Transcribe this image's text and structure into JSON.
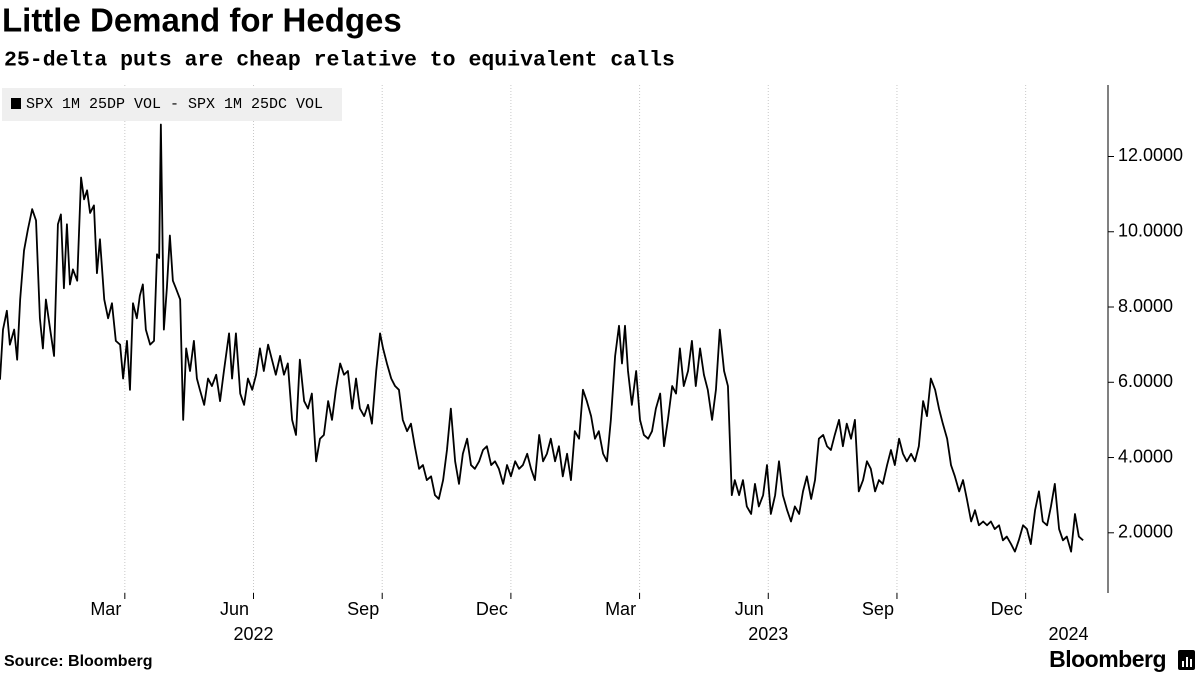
{
  "chart_data": {
    "type": "line",
    "title": "Little Demand for Hedges",
    "subtitle": "25-delta puts are cheap relative to equivalent calls",
    "source": "Source: Bloomberg",
    "logo": "Bloomberg",
    "legend": "top-left",
    "grid": "x",
    "xlim": [
      -0.91,
      24.92
    ],
    "ylim": [
      0.4,
      13.9
    ],
    "xticks": [
      {
        "value": 2,
        "label": "Mar"
      },
      {
        "value": 5,
        "label": "Jun"
      },
      {
        "value": 8,
        "label": "Sep"
      },
      {
        "value": 11,
        "label": "Dec"
      },
      {
        "value": 14,
        "label": "Mar"
      },
      {
        "value": 17,
        "label": "Jun"
      },
      {
        "value": 20,
        "label": "Sep"
      },
      {
        "value": 23,
        "label": "Dec"
      }
    ],
    "year_labels": [
      {
        "value": 5,
        "label": "2022"
      },
      {
        "value": 17,
        "label": "2023"
      },
      {
        "value": 24,
        "label": "2024"
      }
    ],
    "yticks": [
      {
        "value": 2,
        "label": "2.0000"
      },
      {
        "value": 4,
        "label": "4.0000"
      },
      {
        "value": 6,
        "label": "6.0000"
      },
      {
        "value": 8,
        "label": "8.0000"
      },
      {
        "value": 10,
        "label": "10.0000"
      },
      {
        "value": 12,
        "label": "12.0000"
      }
    ],
    "x": [
      -0.91,
      -0.84,
      -0.75,
      -0.68,
      -0.58,
      -0.51,
      -0.44,
      -0.35,
      -0.26,
      -0.16,
      -0.07,
      0.02,
      0.09,
      0.16,
      0.26,
      0.35,
      0.44,
      0.51,
      0.58,
      0.65,
      0.72,
      0.79,
      0.89,
      0.98,
      1.05,
      1.12,
      1.19,
      1.28,
      1.35,
      1.42,
      1.52,
      1.61,
      1.7,
      1.79,
      1.89,
      1.96,
      2.05,
      2.12,
      2.19,
      2.28,
      2.35,
      2.42,
      2.49,
      2.59,
      2.68,
      2.75,
      2.8,
      2.84,
      2.91,
      2.98,
      3.05,
      3.12,
      3.19,
      3.29,
      3.36,
      3.43,
      3.52,
      3.61,
      3.68,
      3.75,
      3.85,
      3.94,
      4.03,
      4.13,
      4.22,
      4.31,
      4.43,
      4.5,
      4.59,
      4.69,
      4.78,
      4.87,
      4.97,
      5.06,
      5.15,
      5.24,
      5.34,
      5.43,
      5.52,
      5.62,
      5.71,
      5.8,
      5.9,
      5.99,
      6.08,
      6.18,
      6.27,
      6.36,
      6.46,
      6.55,
      6.64,
      6.74,
      6.83,
      6.92,
      7.02,
      7.11,
      7.2,
      7.3,
      7.39,
      7.48,
      7.58,
      7.67,
      7.76,
      7.86,
      7.95,
      8.02,
      8.11,
      8.21,
      8.3,
      8.39,
      8.48,
      8.58,
      8.67,
      8.76,
      8.86,
      8.95,
      9.04,
      9.14,
      9.23,
      9.32,
      9.42,
      9.51,
      9.6,
      9.7,
      9.79,
      9.88,
      9.98,
      10.07,
      10.16,
      10.26,
      10.35,
      10.44,
      10.54,
      10.63,
      10.72,
      10.82,
      10.91,
      11.0,
      11.1,
      11.19,
      11.28,
      11.38,
      11.47,
      11.56,
      11.66,
      11.75,
      11.84,
      11.93,
      12.03,
      12.12,
      12.21,
      12.31,
      12.4,
      12.49,
      12.59,
      12.68,
      12.77,
      12.87,
      12.96,
      13.05,
      13.15,
      13.24,
      13.33,
      13.43,
      13.52,
      13.59,
      13.66,
      13.73,
      13.82,
      13.92,
      14.01,
      14.1,
      14.2,
      14.29,
      14.38,
      14.48,
      14.57,
      14.66,
      14.76,
      14.85,
      14.94,
      15.03,
      15.13,
      15.22,
      15.31,
      15.41,
      15.5,
      15.59,
      15.69,
      15.78,
      15.87,
      15.97,
      16.06,
      16.15,
      16.22,
      16.32,
      16.41,
      16.5,
      16.6,
      16.69,
      16.78,
      16.88,
      16.97,
      17.06,
      17.16,
      17.25,
      17.34,
      17.44,
      17.53,
      17.62,
      17.72,
      17.81,
      17.9,
      18.0,
      18.09,
      18.18,
      18.28,
      18.37,
      18.46,
      18.55,
      18.65,
      18.74,
      18.83,
      18.93,
      19.02,
      19.11,
      19.21,
      19.3,
      19.39,
      19.49,
      19.58,
      19.67,
      19.77,
      19.86,
      19.95,
      20.05,
      20.14,
      20.23,
      20.33,
      20.42,
      20.51,
      20.61,
      20.7,
      20.79,
      20.89,
      20.98,
      21.07,
      21.17,
      21.26,
      21.35,
      21.45,
      21.54,
      21.63,
      21.73,
      21.82,
      21.91,
      22.01,
      22.1,
      22.19,
      22.28,
      22.38,
      22.47,
      22.56,
      22.66,
      22.75,
      22.84,
      22.94,
      23.03,
      23.12,
      23.22,
      23.31,
      23.4,
      23.5,
      23.59,
      23.68,
      23.78,
      23.87,
      23.96,
      24.06,
      24.15,
      24.24,
      24.34
    ],
    "series": [
      {
        "name": "SPX 1M 25DP VOL - SPX 1M 25DC VOL",
        "color": "#000000",
        "values": [
          6.07,
          7.4,
          7.9,
          7.0,
          7.4,
          6.6,
          8.2,
          9.5,
          10.06,
          10.6,
          10.3,
          7.7,
          6.9,
          8.2,
          7.4,
          6.7,
          10.2,
          10.46,
          8.5,
          10.2,
          8.6,
          9.0,
          8.7,
          11.44,
          10.86,
          11.1,
          10.5,
          10.7,
          8.9,
          9.8,
          8.2,
          7.7,
          8.1,
          7.1,
          7.0,
          6.1,
          7.1,
          5.8,
          8.1,
          7.7,
          8.3,
          8.6,
          7.4,
          7.0,
          7.1,
          9.4,
          9.3,
          12.85,
          7.4,
          8.5,
          9.9,
          8.7,
          8.5,
          8.2,
          5.0,
          6.9,
          6.3,
          7.1,
          6.1,
          5.8,
          5.4,
          6.1,
          5.9,
          6.2,
          5.5,
          6.3,
          7.3,
          6.1,
          7.3,
          5.7,
          5.4,
          6.1,
          5.8,
          6.2,
          6.9,
          6.3,
          7.0,
          6.6,
          6.2,
          6.7,
          6.2,
          6.5,
          5.0,
          4.6,
          6.6,
          5.5,
          5.3,
          5.7,
          3.9,
          4.5,
          4.6,
          5.5,
          5.0,
          5.8,
          6.5,
          6.2,
          6.3,
          5.3,
          6.1,
          5.3,
          5.1,
          5.4,
          4.9,
          6.3,
          7.3,
          6.9,
          6.5,
          6.1,
          5.9,
          5.8,
          5.0,
          4.7,
          4.9,
          4.3,
          3.7,
          3.8,
          3.4,
          3.5,
          3.0,
          2.9,
          3.4,
          4.2,
          5.3,
          3.9,
          3.3,
          4.1,
          4.5,
          3.8,
          3.7,
          3.9,
          4.2,
          4.3,
          3.8,
          3.9,
          3.7,
          3.3,
          3.8,
          3.5,
          3.9,
          3.7,
          3.8,
          4.1,
          3.7,
          3.4,
          4.6,
          3.9,
          4.1,
          4.5,
          3.9,
          4.3,
          3.5,
          4.1,
          3.4,
          4.7,
          4.5,
          5.8,
          5.5,
          5.1,
          4.5,
          4.7,
          4.1,
          3.9,
          5.0,
          6.7,
          7.5,
          6.5,
          7.5,
          6.3,
          5.4,
          6.3,
          5.0,
          4.6,
          4.5,
          4.7,
          5.3,
          5.7,
          4.3,
          5.0,
          5.9,
          5.7,
          6.9,
          5.9,
          6.3,
          7.1,
          5.9,
          6.9,
          6.2,
          5.8,
          5.0,
          5.8,
          7.4,
          6.3,
          5.9,
          3.0,
          3.4,
          3.0,
          3.4,
          2.7,
          2.5,
          3.3,
          2.7,
          3.0,
          3.8,
          2.5,
          3.0,
          3.9,
          3.0,
          2.6,
          2.3,
          2.7,
          2.5,
          3.1,
          3.5,
          2.9,
          3.4,
          4.5,
          4.6,
          4.3,
          4.2,
          4.6,
          5.0,
          4.3,
          4.9,
          4.5,
          5.0,
          3.1,
          3.4,
          3.9,
          3.7,
          3.1,
          3.4,
          3.3,
          3.8,
          4.2,
          3.8,
          4.5,
          4.1,
          3.9,
          4.1,
          3.9,
          4.3,
          5.5,
          5.1,
          6.1,
          5.8,
          5.3,
          4.9,
          4.5,
          3.8,
          3.5,
          3.1,
          3.4,
          2.9,
          2.3,
          2.6,
          2.2,
          2.3,
          2.2,
          2.3,
          2.1,
          2.2,
          1.8,
          1.9,
          1.7,
          1.5,
          1.8,
          2.2,
          2.1,
          1.7,
          2.6,
          3.1,
          2.3,
          2.2,
          2.7,
          3.3,
          2.1,
          1.8,
          1.9,
          1.5,
          2.5,
          1.9,
          1.8
        ]
      }
    ]
  }
}
